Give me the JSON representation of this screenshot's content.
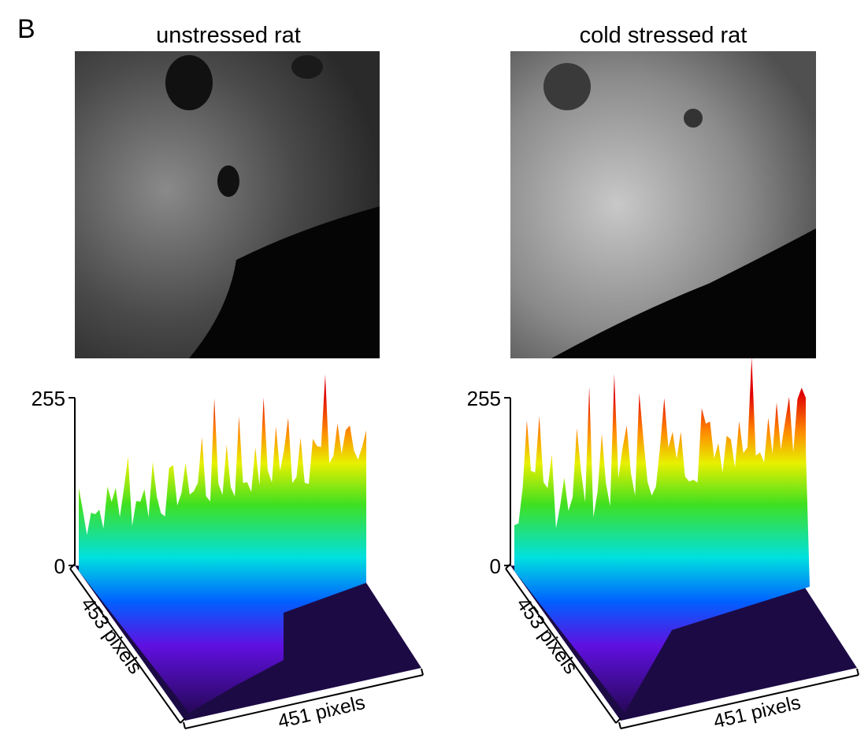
{
  "panel_label": "B",
  "panels": [
    {
      "title": "unstressed rat",
      "z_axis": {
        "max": 255,
        "min": 0
      },
      "y_label": "453 pixels",
      "x_label": "451 pixels"
    },
    {
      "title": "cold stressed rat",
      "z_axis": {
        "max": 255,
        "min": 0
      },
      "y_label": "453 pixels",
      "x_label": "451 pixels"
    }
  ]
}
